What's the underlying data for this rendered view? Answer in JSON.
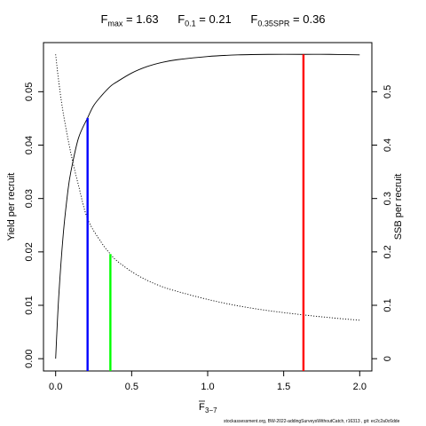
{
  "chart_data": {
    "type": "line",
    "title_terms": [
      {
        "main": "F",
        "sub": "max",
        "value": "= 1.63"
      },
      {
        "main": "F",
        "sub": "0.1",
        "value": "= 0.21"
      },
      {
        "main": "F",
        "sub": "0.35SPR",
        "value": "= 0.36"
      }
    ],
    "xlabel_main": "F",
    "xlabel_sub": "3−7",
    "ylabel_left": "Yield per recruit",
    "ylabel_right": "SSB per recruit",
    "xlim": [
      -0.08,
      2.08
    ],
    "ylim_left": [
      -0.0023,
      0.0592
    ],
    "ylim_right": [
      -0.023,
      0.592
    ],
    "x_ticks": [
      0,
      0.5,
      1,
      1.5,
      2
    ],
    "x_tick_labels": [
      "0.0",
      "0.5",
      "1.0",
      "1.5",
      "2.0"
    ],
    "y_left_ticks": [
      0,
      0.01,
      0.02,
      0.03,
      0.04,
      0.05
    ],
    "y_left_tick_labels": [
      "0.00",
      "0.01",
      "0.02",
      "0.03",
      "0.04",
      "0.05"
    ],
    "y_right_ticks": [
      0,
      0.1,
      0.2,
      0.3,
      0.4,
      0.5
    ],
    "y_right_tick_labels": [
      "0",
      "0.1",
      "0.2",
      "0.3",
      "0.4",
      "0.5"
    ],
    "series": [
      {
        "axis": "left",
        "style": "solid",
        "color": "#000000",
        "x": [
          0,
          0.02,
          0.05,
          0.08,
          0.1,
          0.15,
          0.21,
          0.25,
          0.3,
          0.36,
          0.4,
          0.5,
          0.6,
          0.7,
          0.8,
          1.0,
          1.2,
          1.4,
          1.63,
          1.8,
          2.0
        ],
        "y": [
          0,
          0.0115,
          0.0233,
          0.0313,
          0.035,
          0.0413,
          0.0451,
          0.0474,
          0.0492,
          0.051,
          0.0518,
          0.0535,
          0.0547,
          0.0555,
          0.056,
          0.0566,
          0.0569,
          0.057,
          0.057,
          0.057,
          0.0569
        ]
      },
      {
        "axis": "right",
        "style": "dotted",
        "color": "#000000",
        "x": [
          0,
          0.02,
          0.05,
          0.1,
          0.15,
          0.21,
          0.3,
          0.36,
          0.4,
          0.5,
          0.6,
          0.7,
          0.8,
          1.0,
          1.2,
          1.4,
          1.6,
          1.8,
          2.0
        ],
        "y": [
          0.57,
          0.52,
          0.46,
          0.385,
          0.325,
          0.262,
          0.218,
          0.196,
          0.184,
          0.163,
          0.147,
          0.135,
          0.126,
          0.111,
          0.099,
          0.09,
          0.083,
          0.077,
          0.072
        ]
      }
    ],
    "reference_lines": [
      {
        "name": "Fmax",
        "x": 1.63,
        "axis": "left",
        "y_top": 0.057,
        "color": "#ff0000"
      },
      {
        "name": "F0.1",
        "x": 0.21,
        "axis": "left",
        "y_top": 0.0451,
        "color": "#0000ff"
      },
      {
        "name": "F0.35SPR",
        "x": 0.36,
        "axis": "right",
        "y_top": 0.196,
        "color": "#00ff00"
      }
    ],
    "footer": "stockassessment.org, BW-2022-addingSurveysWithoutCatch, r16313 , git: ec2c2a0c6dde"
  }
}
